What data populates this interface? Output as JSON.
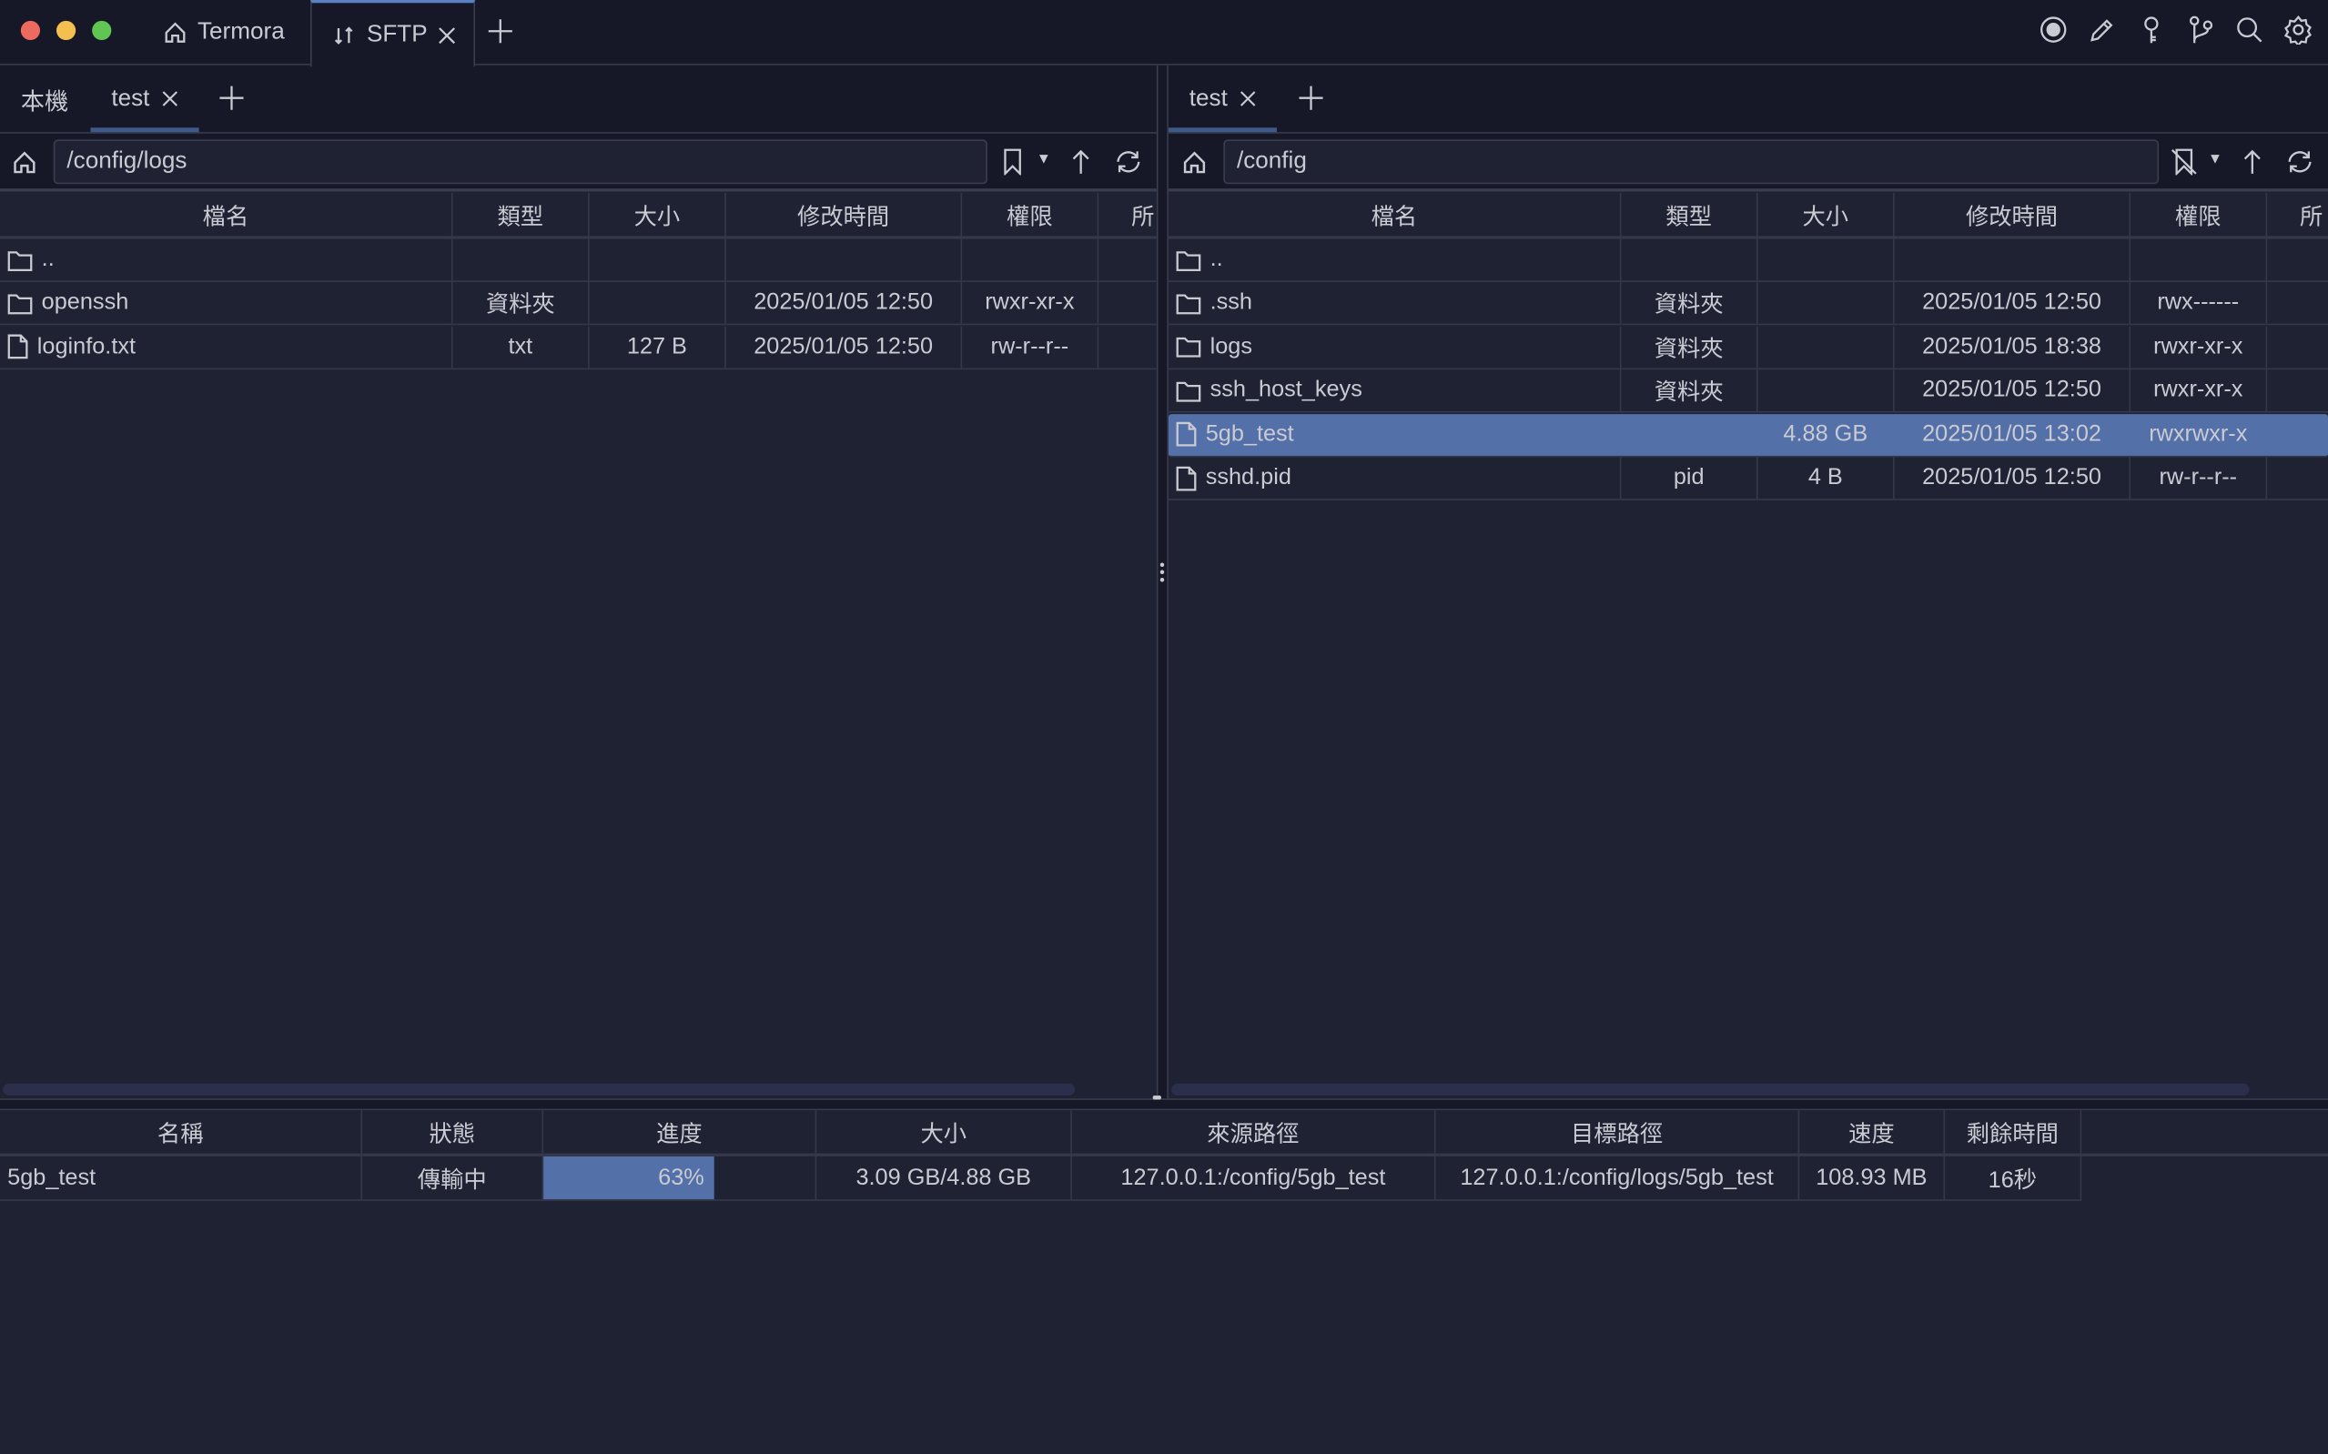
{
  "titlebar": {
    "tabs": [
      {
        "label": "Termora",
        "icon": "home-icon"
      },
      {
        "label": "SFTP",
        "icon": "transfer-arrows-icon",
        "active": true
      }
    ],
    "right_icons": [
      "record-icon",
      "pencil-icon",
      "key-icon",
      "git-branch-icon",
      "search-icon",
      "gear-icon"
    ]
  },
  "columns": [
    "檔名",
    "類型",
    "大小",
    "修改時間",
    "權限",
    "所"
  ],
  "left": {
    "tabs": [
      "本機",
      "test"
    ],
    "active_tab": "test",
    "path": "/config/logs",
    "rows": [
      {
        "name": "..",
        "icon": "folder-icon",
        "type": "",
        "size": "",
        "mtime": "",
        "perm": ""
      },
      {
        "name": "openssh",
        "icon": "folder-icon",
        "type": "資料夾",
        "size": "",
        "mtime": "2025/01/05 12:50",
        "perm": "rwxr-xr-x"
      },
      {
        "name": "loginfo.txt",
        "icon": "file-icon",
        "type": "txt",
        "size": "127 B",
        "mtime": "2025/01/05 12:50",
        "perm": "rw-r--r--"
      }
    ]
  },
  "right": {
    "tabs": [
      "test"
    ],
    "active_tab": "test",
    "path": "/config",
    "rows": [
      {
        "name": "..",
        "icon": "folder-icon",
        "type": "",
        "size": "",
        "mtime": "",
        "perm": ""
      },
      {
        "name": ".ssh",
        "icon": "folder-icon",
        "type": "資料夾",
        "size": "",
        "mtime": "2025/01/05 12:50",
        "perm": "rwx------"
      },
      {
        "name": "logs",
        "icon": "folder-icon",
        "type": "資料夾",
        "size": "",
        "mtime": "2025/01/05 18:38",
        "perm": "rwxr-xr-x"
      },
      {
        "name": "ssh_host_keys",
        "icon": "folder-icon",
        "type": "資料夾",
        "size": "",
        "mtime": "2025/01/05 12:50",
        "perm": "rwxr-xr-x"
      },
      {
        "name": "5gb_test",
        "icon": "file-icon",
        "type": "",
        "size": "4.88 GB",
        "mtime": "2025/01/05 13:02",
        "perm": "rwxrwxr-x",
        "selected": true
      },
      {
        "name": "sshd.pid",
        "icon": "file-icon",
        "type": "pid",
        "size": "4 B",
        "mtime": "2025/01/05 12:50",
        "perm": "rw-r--r--"
      }
    ]
  },
  "transfers": {
    "columns": [
      "名稱",
      "狀態",
      "進度",
      "大小",
      "來源路徑",
      "目標路徑",
      "速度",
      "剩餘時間"
    ],
    "rows": [
      {
        "name": "5gb_test",
        "status": "傳輸中",
        "progress": 63,
        "progress_label": "63%",
        "size": "3.09 GB/4.88 GB",
        "source": "127.0.0.1:/config/5gb_test",
        "target": "127.0.0.1:/config/logs/5gb_test",
        "speed": "108.93 MB",
        "remaining": "16秒"
      }
    ]
  },
  "colors": {
    "accent": "#5470a8",
    "background": "#1f2233",
    "titlebar": "#161828"
  }
}
